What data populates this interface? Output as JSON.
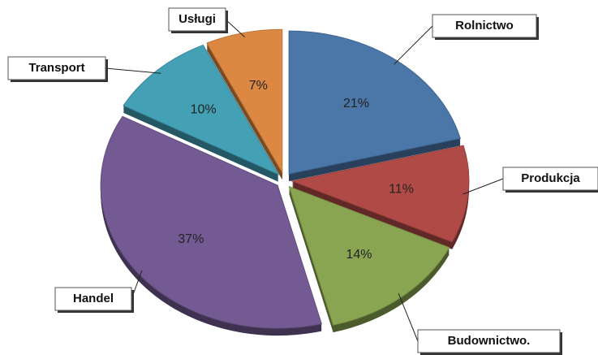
{
  "chart_data": {
    "type": "pie",
    "categories": [
      "Rolnictwo",
      "Produkcja",
      "Budownictwo.",
      "Handel",
      "Transport",
      "Usługi"
    ],
    "values": [
      21,
      11,
      14,
      37,
      10,
      7
    ],
    "value_labels": [
      "21%",
      "11%",
      "14%",
      "37%",
      "10%",
      "7%"
    ],
    "colors": [
      "#4a76a8",
      "#b04a47",
      "#8aa552",
      "#735a92",
      "#43a0b5",
      "#dc8842"
    ]
  }
}
